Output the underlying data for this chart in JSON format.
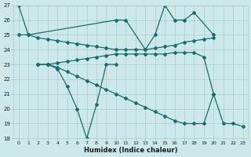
{
  "xlabel": "Humidex (Indice chaleur)",
  "xlim": [
    -0.5,
    23.5
  ],
  "ylim": [
    18,
    27
  ],
  "yticks": [
    18,
    19,
    20,
    21,
    22,
    23,
    24,
    25,
    26,
    27
  ],
  "xticks": [
    0,
    1,
    2,
    3,
    4,
    5,
    6,
    7,
    8,
    9,
    10,
    11,
    12,
    13,
    14,
    15,
    16,
    17,
    18,
    19,
    20,
    21,
    22,
    23
  ],
  "background_color": "#cde8e8",
  "grid_color": "#a8cccc",
  "line_color": "#1a6b6b",
  "line1_x": [
    0,
    1,
    10,
    11,
    13,
    14,
    15,
    16,
    17,
    18,
    20
  ],
  "line1_y": [
    27,
    25,
    26,
    26,
    24,
    25,
    27,
    26,
    26,
    26.5,
    25
  ],
  "line2_x": [
    2,
    3,
    4,
    5,
    6,
    7,
    8,
    9,
    10,
    11,
    12,
    13,
    14,
    15,
    16,
    17,
    18,
    19,
    20,
    21,
    22,
    23
  ],
  "line2_y": [
    23,
    23,
    22.8,
    22.5,
    22.2,
    21.9,
    21.6,
    21.3,
    21.0,
    20.7,
    20.4,
    20.1,
    19.8,
    19.5,
    19.2,
    19.0,
    19.0,
    19.0,
    21,
    19,
    19,
    18.8
  ],
  "line3_x": [
    0,
    1,
    2,
    3,
    4,
    5,
    6,
    7,
    8,
    9,
    10,
    11,
    12,
    13,
    14,
    15,
    16,
    17,
    18,
    19,
    20
  ],
  "line3_y": [
    25,
    25,
    24.8,
    24.7,
    24.6,
    24.5,
    24.4,
    24.3,
    24.2,
    24.1,
    24.0,
    24.0,
    24.0,
    24.0,
    24.1,
    24.2,
    24.3,
    24.5,
    24.6,
    24.7,
    24.8
  ],
  "line4_x": [
    2,
    3,
    4,
    5,
    6,
    7,
    8,
    9,
    10,
    11,
    12,
    13,
    14,
    15,
    16,
    17,
    18,
    19,
    20
  ],
  "line4_y": [
    23,
    23,
    23.1,
    23.2,
    23.3,
    23.4,
    23.5,
    23.6,
    23.7,
    23.7,
    23.7,
    23.7,
    23.7,
    23.7,
    23.8,
    23.8,
    23.8,
    23.5,
    21
  ],
  "line5_x": [
    3,
    4,
    5,
    6,
    7,
    8,
    9,
    10
  ],
  "line5_y": [
    23,
    22.7,
    21.5,
    20,
    18,
    20.3,
    23,
    23
  ]
}
